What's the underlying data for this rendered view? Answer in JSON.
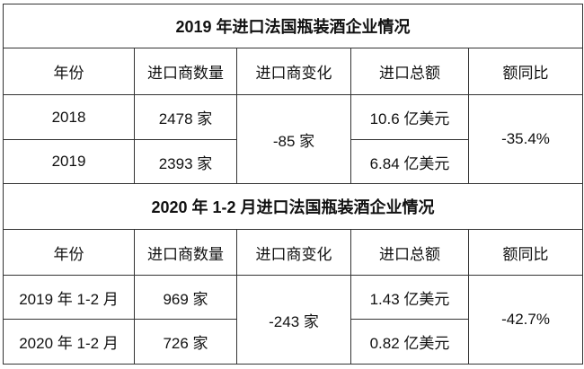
{
  "tables": [
    {
      "title": "2019 年进口法国瓶装酒企业情况",
      "headers": [
        "年份",
        "进口商数量",
        "进口商变化",
        "进口总额",
        "额同比"
      ],
      "rows": [
        {
          "year": "2018",
          "count": "2478 家",
          "amount": "10.6 亿美元"
        },
        {
          "year": "2019",
          "count": "2393 家",
          "amount": "6.84 亿美元"
        }
      ],
      "change": "-85 家",
      "yoy": "-35.4%"
    },
    {
      "title": "2020 年 1-2 月进口法国瓶装酒企业情况",
      "headers": [
        "年份",
        "进口商数量",
        "进口商变化",
        "进口总额",
        "额同比"
      ],
      "rows": [
        {
          "year": "2019 年 1-2 月",
          "count": "969 家",
          "amount": "1.43 亿美元"
        },
        {
          "year": "2020 年 1-2 月",
          "count": "726 家",
          "amount": "0.82 亿美元"
        }
      ],
      "change": "-243 家",
      "yoy": "-42.7%"
    }
  ]
}
